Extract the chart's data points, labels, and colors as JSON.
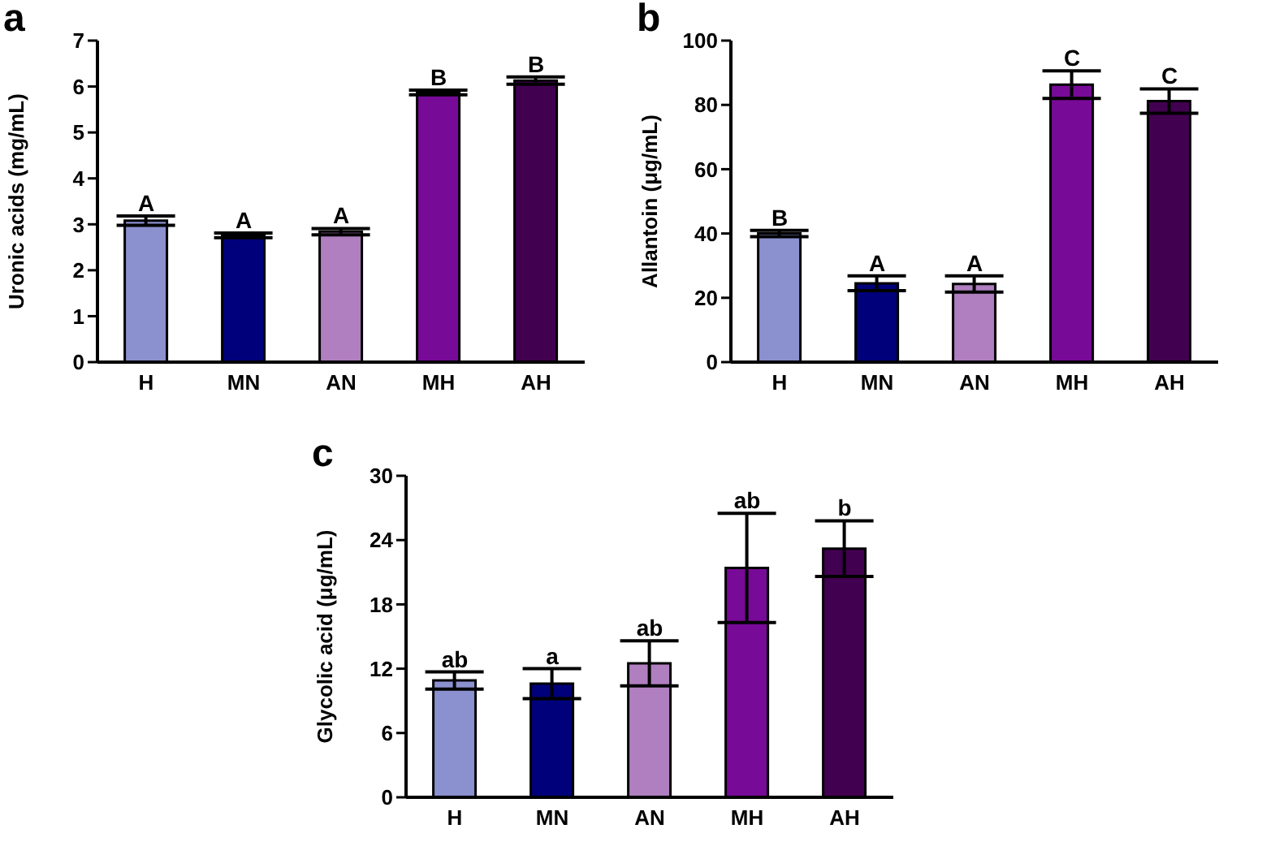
{
  "chart_data": [
    {
      "type": "bar",
      "title": "a",
      "ylabel": "Uronic acids (mg/mL)",
      "categories": [
        "H",
        "MN",
        "AN",
        "MH",
        "AH"
      ],
      "values": [
        3.08,
        2.76,
        2.84,
        5.87,
        6.13
      ],
      "errors": [
        0.1,
        0.05,
        0.07,
        0.05,
        0.08
      ],
      "colors": [
        "#8b90cf",
        "#00007a",
        "#b07fbf",
        "#780a98",
        "#420050"
      ],
      "ylim": [
        0,
        7
      ],
      "yticks": [
        0,
        1,
        2,
        3,
        4,
        5,
        6,
        7
      ],
      "annotations": [
        {
          "text": "A",
          "x": "H",
          "y": 3.18
        },
        {
          "text": "A",
          "x": "MN",
          "y": 2.81
        },
        {
          "text": "A",
          "x": "AN",
          "y": 2.91
        },
        {
          "text": "B",
          "x": "MH",
          "y": 5.92
        },
        {
          "text": "B",
          "x": "AH",
          "y": 6.21
        }
      ]
    },
    {
      "type": "bar",
      "title": "b",
      "ylabel": "Allantoin (μg/mL)",
      "categories": [
        "H",
        "MN",
        "AN",
        "MH",
        "AH"
      ],
      "values": [
        40,
        24.5,
        24.3,
        86.3,
        81.2
      ],
      "errors": [
        1,
        2.3,
        2.5,
        4.3,
        3.8
      ],
      "colors": [
        "#8b90cf",
        "#00007a",
        "#b07fbf",
        "#780a98",
        "#420050"
      ],
      "ylim": [
        0,
        100
      ],
      "yticks": [
        0,
        20,
        40,
        60,
        80,
        100
      ],
      "annotations": [
        {
          "text": "B",
          "x": "H",
          "y": 41
        },
        {
          "text": "A",
          "x": "MN",
          "y": 26.8
        },
        {
          "text": "A",
          "x": "AN",
          "y": 26.8
        },
        {
          "text": "C",
          "x": "MH",
          "y": 90.6
        },
        {
          "text": "C",
          "x": "AH",
          "y": 85
        }
      ]
    },
    {
      "type": "bar",
      "title": "c",
      "ylabel": "Glycolic acid (μg/mL)",
      "categories": [
        "H",
        "MN",
        "AN",
        "MH",
        "AH"
      ],
      "values": [
        10.9,
        10.6,
        12.5,
        21.4,
        23.2
      ],
      "errors": [
        0.8,
        1.4,
        2.1,
        5.1,
        2.6
      ],
      "colors": [
        "#8b90cf",
        "#00007a",
        "#b07fbf",
        "#780a98",
        "#420050"
      ],
      "ylim": [
        0,
        30
      ],
      "yticks": [
        0,
        6,
        12,
        18,
        24,
        30
      ],
      "annotations": [
        {
          "text": "ab",
          "x": "H",
          "y": 11.7
        },
        {
          "text": "a",
          "x": "MN",
          "y": 12
        },
        {
          "text": "ab",
          "x": "AN",
          "y": 14.6
        },
        {
          "text": "ab",
          "x": "MH",
          "y": 26.5
        },
        {
          "text": "b",
          "x": "AH",
          "y": 25.8
        }
      ]
    }
  ]
}
